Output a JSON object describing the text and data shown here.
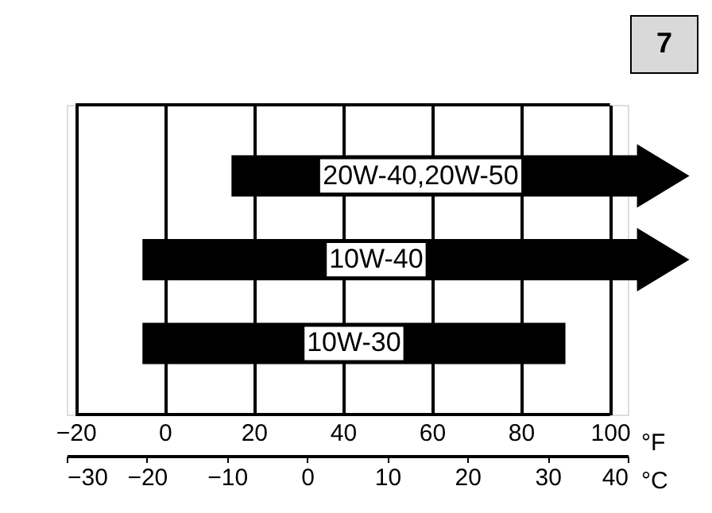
{
  "chart_data": {
    "type": "bar",
    "orientation": "horizontal",
    "categories": [
      "20W-40,20W-50",
      "10W-40",
      "10W-30"
    ],
    "base": [
      15,
      -5,
      -5
    ],
    "values": [
      85,
      105,
      95
    ],
    "color": "#000000",
    "xlim": [
      -22,
      104
    ],
    "xticks": [
      -20,
      0,
      20,
      40,
      60,
      80,
      100
    ],
    "xlabel": "°F",
    "x2lim": [
      -30,
      40
    ],
    "x2ticks": [
      -30,
      -20,
      -10,
      0,
      10,
      20,
      30,
      40
    ],
    "x2label": "°C",
    "grid": "x",
    "tick_labels": "x",
    "annotations": [
      "7"
    ]
  }
}
